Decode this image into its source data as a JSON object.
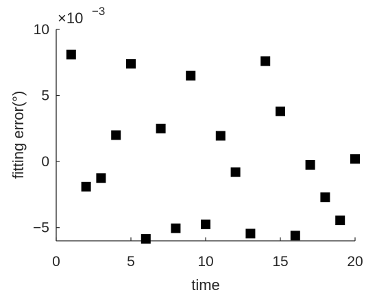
{
  "chart_data": {
    "type": "scatter",
    "xlabel": "time",
    "ylabel": "fitting error(°)",
    "y_multiplier": {
      "base": "×10",
      "exponent": "−3"
    },
    "xlim": [
      0,
      20
    ],
    "ylim": [
      -6,
      10
    ],
    "xticks": [
      0,
      5,
      10,
      15,
      20
    ],
    "xtick_labels": [
      "0",
      "5",
      "10",
      "15",
      "20"
    ],
    "yticks": [
      -5,
      0,
      5,
      10
    ],
    "ytick_labels": [
      "−5",
      "0",
      "5",
      "10"
    ],
    "grid": false,
    "marker": "square",
    "marker_color": "#000000",
    "points": [
      {
        "x": 1,
        "y": 8.1
      },
      {
        "x": 2,
        "y": -1.9
      },
      {
        "x": 3,
        "y": -1.25
      },
      {
        "x": 4,
        "y": 2.0
      },
      {
        "x": 5,
        "y": 7.4
      },
      {
        "x": 6,
        "y": -5.85
      },
      {
        "x": 7,
        "y": 2.5
      },
      {
        "x": 8,
        "y": -5.05
      },
      {
        "x": 9,
        "y": 6.5
      },
      {
        "x": 10,
        "y": -4.75
      },
      {
        "x": 11,
        "y": 1.95
      },
      {
        "x": 12,
        "y": -0.8
      },
      {
        "x": 13,
        "y": -5.45
      },
      {
        "x": 14,
        "y": 7.6
      },
      {
        "x": 15,
        "y": 3.8
      },
      {
        "x": 16,
        "y": -5.6
      },
      {
        "x": 17,
        "y": -0.25
      },
      {
        "x": 18,
        "y": -2.7
      },
      {
        "x": 19,
        "y": -4.45
      },
      {
        "x": 20,
        "y": 0.2
      }
    ]
  }
}
